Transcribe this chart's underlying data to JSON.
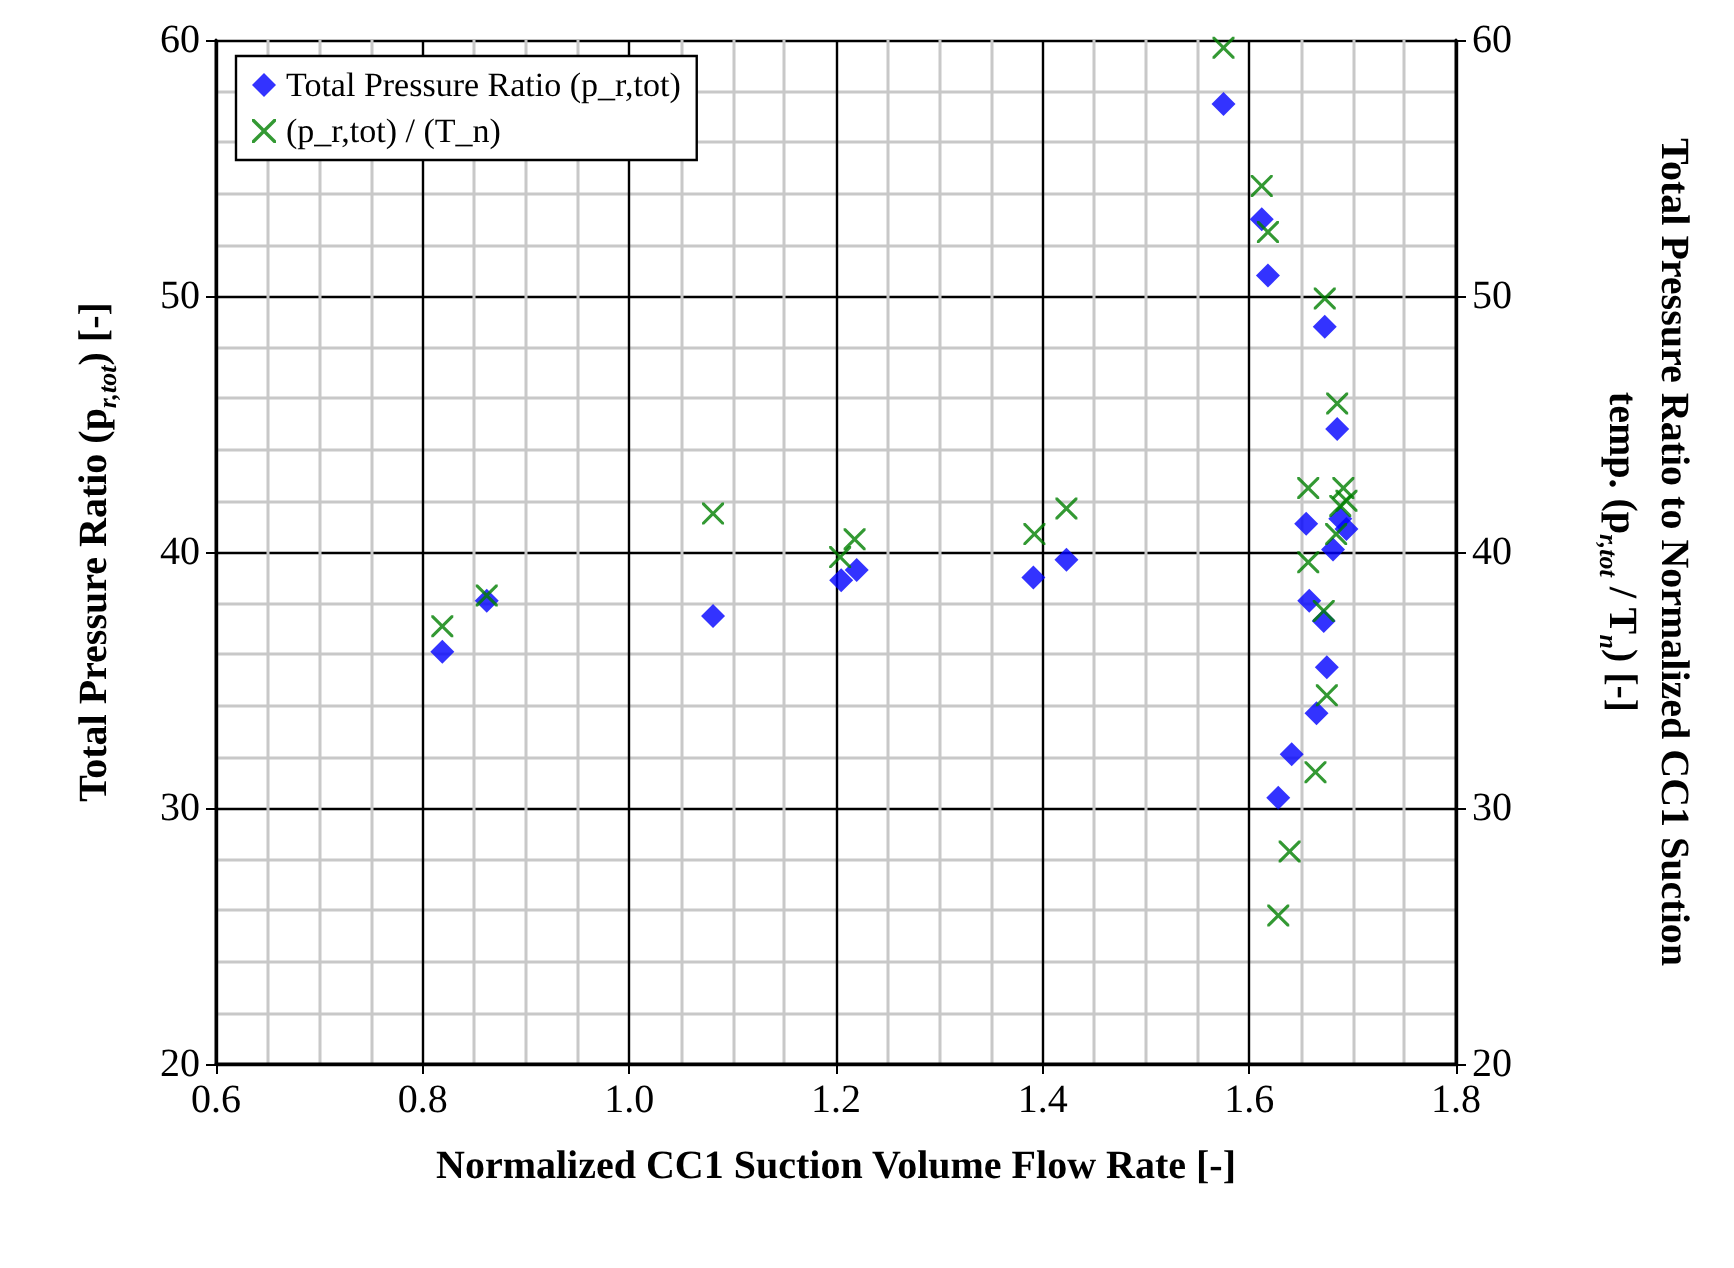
{
  "chart_data": {
    "type": "scatter",
    "xlabel": "Normalized CC1 Suction Volume Flow Rate [-]",
    "ylabel": "Total Pressure Ratio (p$_{r,tot}$) [-]",
    "y2label": "Total Pressure Ratio to Normalized CC1 Suction temp. (p$_{r,tot}$ / T$_{n}$) [-]",
    "xlim": [
      0.6,
      1.8
    ],
    "xticks": [
      0.6,
      0.8,
      {
        "value": 1,
        "label": "1.0"
      },
      1.2,
      1.4,
      1.6,
      1.8
    ],
    "ylim": [
      20,
      60
    ],
    "yticks": [
      20,
      30,
      40,
      50,
      60
    ],
    "y2lim": [
      20,
      60
    ],
    "y2ticks": [
      20,
      30,
      40,
      50,
      60
    ],
    "grid": true,
    "legend": "top left",
    "series": [
      {
        "name": "Total Pressure Ratio (p_r,tot)",
        "color": "#0000ff",
        "marker": "diamond",
        "x": [
          0.819,
          0.862,
          1.081,
          1.205,
          1.22,
          1.391,
          1.423,
          1.575,
          1.612,
          1.618,
          1.673,
          1.685,
          1.655,
          1.688,
          1.694,
          1.681,
          1.658,
          1.672,
          1.675,
          1.665,
          1.641,
          1.628
        ],
        "values": [
          36.1,
          38.1,
          37.5,
          38.9,
          39.3,
          39.0,
          39.7,
          57.5,
          53.0,
          50.8,
          48.8,
          44.8,
          41.1,
          41.3,
          40.9,
          40.1,
          38.1,
          37.3,
          35.5,
          33.7,
          32.1,
          30.4
        ]
      },
      {
        "name": "(p_r,tot) / (T_n)",
        "color": "#008000",
        "marker": "cross",
        "x": [
          0.819,
          0.862,
          1.081,
          1.204,
          1.218,
          1.392,
          1.423,
          1.575,
          1.612,
          1.618,
          1.673,
          1.685,
          1.657,
          1.691,
          1.688,
          1.694,
          1.684,
          1.657,
          1.672,
          1.675,
          1.664,
          1.639,
          1.628
        ],
        "values": [
          37.1,
          38.3,
          41.5,
          39.8,
          40.5,
          40.7,
          41.7,
          59.7,
          54.3,
          52.5,
          49.9,
          45.8,
          42.5,
          42.5,
          41.8,
          42.0,
          40.7,
          39.6,
          37.7,
          34.4,
          31.4,
          28.3,
          25.8
        ]
      }
    ]
  }
}
